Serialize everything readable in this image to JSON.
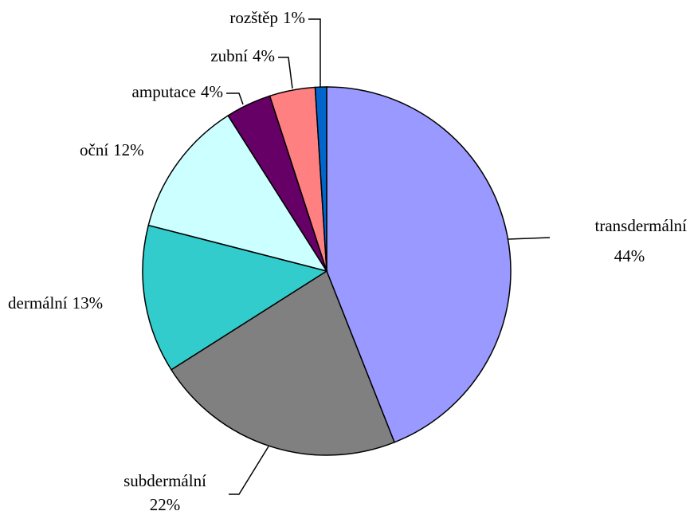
{
  "chart_data": {
    "type": "pie",
    "categories": [
      "transdermální",
      "subdermální",
      "dermální",
      "oční",
      "amputace",
      "zubní",
      "rozštěp"
    ],
    "values": [
      44,
      22,
      13,
      12,
      4,
      4,
      1
    ],
    "value_labels": [
      "44%",
      "22%",
      "13%",
      "12%",
      "4%",
      "4%",
      "1%"
    ],
    "colors": [
      "#9999ff",
      "#808080",
      "#33cccc",
      "#ccffff",
      "#660066",
      "#ff8080",
      "#0066cc"
    ]
  }
}
